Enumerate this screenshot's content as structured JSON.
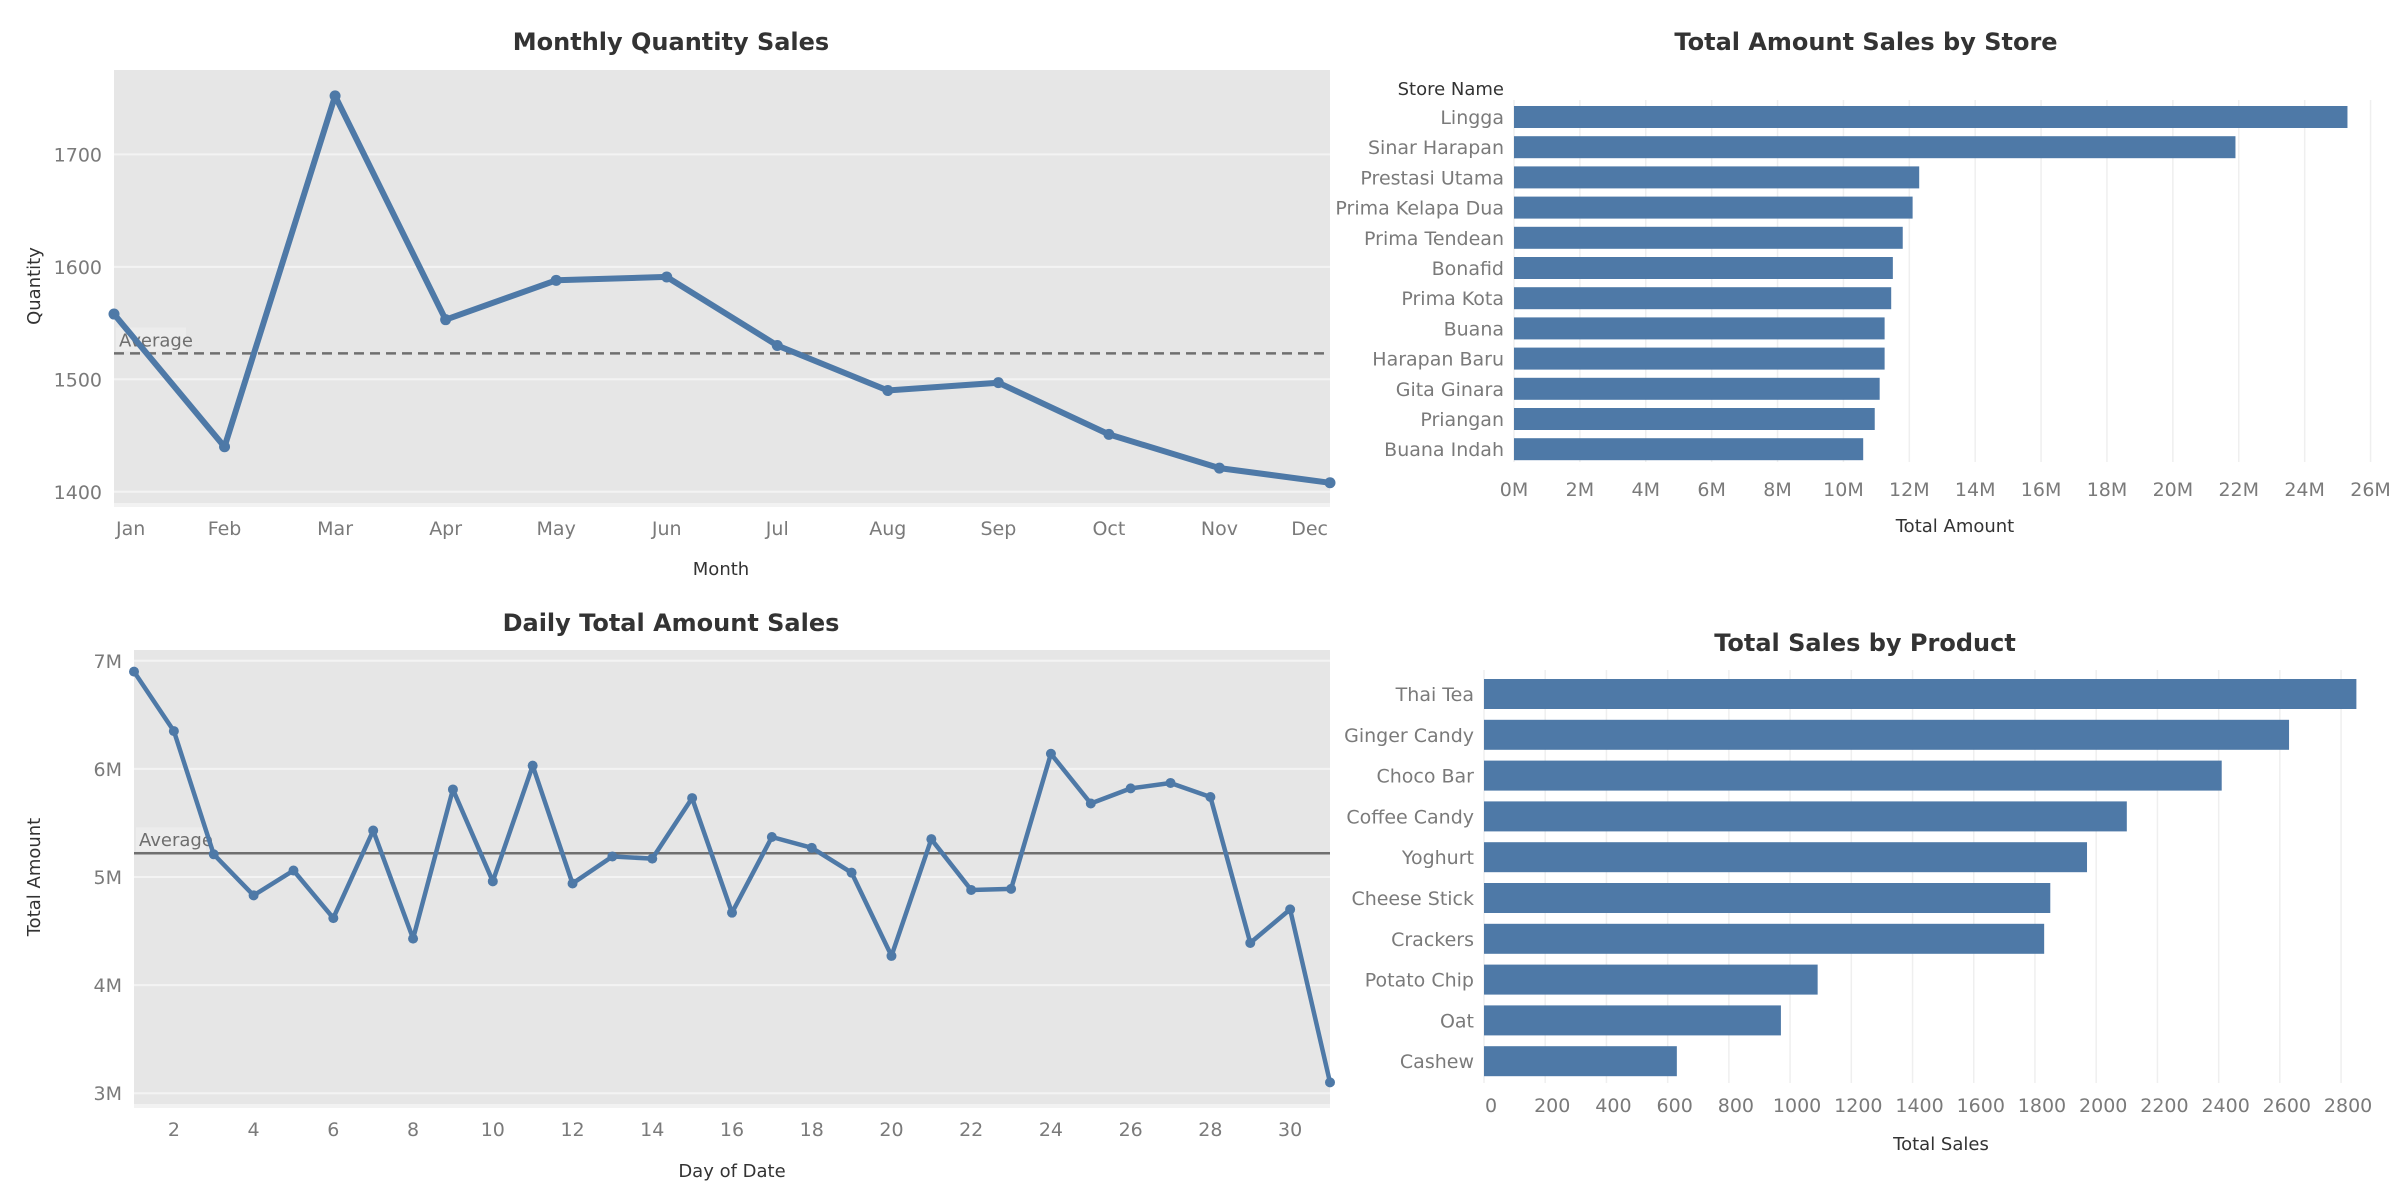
{
  "chart_data": [
    {
      "id": "monthly",
      "type": "line",
      "title": "Monthly Quantity Sales",
      "xlabel": "Month",
      "ylabel": "Quantity",
      "categories": [
        "Jan",
        "Feb",
        "Mar",
        "Apr",
        "May",
        "Jun",
        "Jul",
        "Aug",
        "Sep",
        "Oct",
        "Nov",
        "Dec"
      ],
      "values": [
        1558,
        1440,
        1752,
        1553,
        1588,
        1591,
        1530,
        1490,
        1497,
        1451,
        1421,
        1408
      ],
      "ylim": [
        1390,
        1775
      ],
      "yticks": [
        1400,
        1500,
        1600,
        1700
      ],
      "reference_line": {
        "label": "Average",
        "value": 1523,
        "style": "dashed"
      },
      "color": "#4e79a7",
      "grid": "horizontal"
    },
    {
      "id": "daily",
      "type": "line",
      "title": "Daily Total Amount Sales",
      "xlabel": "Day of Date",
      "ylabel": "Total Amount",
      "x": [
        1,
        2,
        3,
        4,
        5,
        6,
        7,
        8,
        9,
        10,
        11,
        12,
        13,
        14,
        15,
        16,
        17,
        18,
        19,
        20,
        21,
        22,
        23,
        24,
        25,
        26,
        27,
        28,
        29,
        30,
        31
      ],
      "values": [
        6900000,
        6350000,
        5210000,
        4830000,
        5060000,
        4620000,
        5430000,
        4430000,
        5810000,
        4960000,
        6030000,
        4940000,
        5190000,
        5170000,
        5730000,
        4670000,
        5370000,
        5270000,
        5040000,
        4270000,
        5350000,
        4880000,
        4890000,
        6140000,
        5680000,
        5820000,
        5870000,
        5740000,
        4390000,
        4700000,
        3100000
      ],
      "ylim": [
        2900000,
        7100000
      ],
      "yticks": [
        3000000,
        4000000,
        5000000,
        6000000,
        7000000
      ],
      "ytick_labels": [
        "3M",
        "4M",
        "5M",
        "6M",
        "7M"
      ],
      "xticks": [
        2,
        4,
        6,
        8,
        10,
        12,
        14,
        16,
        18,
        20,
        22,
        24,
        26,
        28,
        30
      ],
      "reference_line": {
        "label": "Average",
        "value": 5220000,
        "style": "solid"
      },
      "color": "#4e79a7",
      "grid": "horizontal"
    },
    {
      "id": "store",
      "type": "bar",
      "orientation": "horizontal",
      "title": "Total Amount Sales by Store",
      "category_header": "Store Name",
      "xlabel": "Total Amount",
      "categories": [
        "Lingga",
        "Sinar Harapan",
        "Prestasi Utama",
        "Prima Kelapa Dua",
        "Prima Tendean",
        "Bonafid",
        "Prima Kota",
        "Buana",
        "Harapan Baru",
        "Gita Ginara",
        "Priangan",
        "Buana Indah"
      ],
      "values": [
        25300000,
        21900000,
        12300000,
        12100000,
        11800000,
        11500000,
        11450000,
        11250000,
        11250000,
        11100000,
        10950000,
        10600000
      ],
      "xlim": [
        0,
        26500000
      ],
      "xticks": [
        0,
        2000000,
        4000000,
        6000000,
        8000000,
        10000000,
        12000000,
        14000000,
        16000000,
        18000000,
        20000000,
        22000000,
        24000000,
        26000000
      ],
      "xtick_labels": [
        "0M",
        "2M",
        "4M",
        "6M",
        "8M",
        "10M",
        "12M",
        "14M",
        "16M",
        "18M",
        "20M",
        "22M",
        "24M",
        "26M"
      ],
      "color": "#4e79a7",
      "grid": "vertical"
    },
    {
      "id": "product",
      "type": "bar",
      "orientation": "horizontal",
      "title": "Total Sales by Product",
      "xlabel": "Total Sales",
      "categories": [
        "Thai Tea",
        "Ginger Candy",
        "Choco Bar",
        "Coffee Candy",
        "Yoghurt",
        "Cheese Stick",
        "Crackers",
        "Potato Chip",
        "Oat",
        "Cashew"
      ],
      "values": [
        2850,
        2630,
        2410,
        2100,
        1970,
        1850,
        1830,
        1090,
        970,
        630
      ],
      "xlim": [
        0,
        2950
      ],
      "xticks": [
        0,
        200,
        400,
        600,
        800,
        1000,
        1200,
        1400,
        1600,
        1800,
        2000,
        2200,
        2400,
        2600,
        2800
      ],
      "color": "#4e79a7",
      "grid": "vertical"
    }
  ]
}
